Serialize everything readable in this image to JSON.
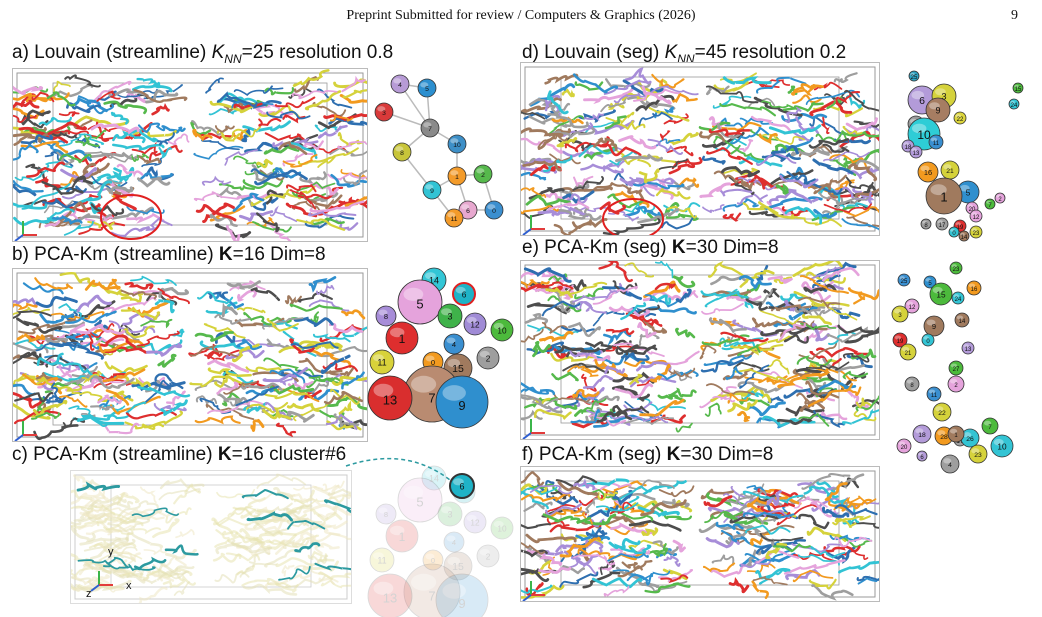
{
  "header": {
    "title": "Preprint Submitted for review / Computers & Graphics (2026)",
    "page_number": "9"
  },
  "panels": {
    "a": {
      "prefix": "a) Louvain (streamline) ",
      "knn_k": "K",
      "knn_sub": "NN",
      "rest": "=25 resolution 0.8"
    },
    "b": {
      "prefix": "b) PCA-Km (streamline) ",
      "bold": "K",
      "rest": "=16 Dim=8"
    },
    "c": {
      "prefix": "c) PCA-Km (streamline) ",
      "bold": "K",
      "rest": "=16 cluster#6"
    },
    "d": {
      "prefix": "d) Louvain (seg) ",
      "knn_k": "K",
      "knn_sub": "NN",
      "rest": "=45 resolution 0.2"
    },
    "e": {
      "prefix": "e) PCA-Km (seg) ",
      "bold": "K",
      "rest": "=30 Dim=8"
    },
    "f": {
      "prefix": "f) PCA-Km (seg) ",
      "bold": "K",
      "rest": "=30 Dim=8"
    }
  },
  "axes": {
    "x": "x",
    "y": "y",
    "z": "z"
  },
  "cluster_graph_a": {
    "nodes": [
      {
        "label": "4",
        "color": "#b79bd6"
      },
      {
        "label": "5",
        "color": "#2c8fcf"
      },
      {
        "label": "3",
        "color": "#d93a3a"
      },
      {
        "label": "7",
        "color": "#8a8a8a"
      },
      {
        "label": "10",
        "color": "#3d8fc7"
      },
      {
        "label": "8",
        "color": "#c8c53a"
      },
      {
        "label": "9",
        "color": "#32c3d4"
      },
      {
        "label": "1",
        "color": "#f39b2a"
      },
      {
        "label": "2",
        "color": "#56b94c"
      },
      {
        "label": "6",
        "color": "#e7a8cf"
      },
      {
        "label": "0",
        "color": "#3b8fcf"
      },
      {
        "label": "11",
        "color": "#f39b2a"
      }
    ]
  },
  "cluster_bubbles_b": [
    {
      "label": "14",
      "color": "#33c6d6"
    },
    {
      "label": "5",
      "color": "#e5a3dc"
    },
    {
      "label": "6",
      "color": "#1fb3c7"
    },
    {
      "label": "8",
      "color": "#a78dd8"
    },
    {
      "label": "3",
      "color": "#3fb24a"
    },
    {
      "label": "12",
      "color": "#a08bd6"
    },
    {
      "label": "10",
      "color": "#4cba3c"
    },
    {
      "label": "1",
      "color": "#de2e2e"
    },
    {
      "label": "4",
      "color": "#3a8fd0"
    },
    {
      "label": "11",
      "color": "#d8d23a"
    },
    {
      "label": "0",
      "color": "#f29a1f"
    },
    {
      "label": "15",
      "color": "#a07a5e"
    },
    {
      "label": "2",
      "color": "#9e9e9e"
    },
    {
      "label": "7",
      "color": "#b98b71"
    },
    {
      "label": "13",
      "color": "#d92e2e"
    },
    {
      "label": "9",
      "color": "#2f8fce"
    }
  ],
  "cluster_bubbles_c_highlight": {
    "label": "6",
    "color": "#1fb3c7"
  },
  "cluster_bubbles_d": [
    {
      "label": "25",
      "color": "#2ea3c2"
    },
    {
      "label": "15",
      "color": "#4cba3c"
    },
    {
      "label": "6",
      "color": "#b39bd9"
    },
    {
      "label": "3",
      "color": "#d5d23b"
    },
    {
      "label": "24",
      "color": "#33c4d4"
    },
    {
      "label": "9",
      "color": "#a67d62"
    },
    {
      "label": "22",
      "color": "#dcd53c"
    },
    {
      "label": "4",
      "color": "#9b9b9b"
    },
    {
      "label": "10",
      "color": "#2ecdd6"
    },
    {
      "label": "18",
      "color": "#b39bd9"
    },
    {
      "label": "13",
      "color": "#b39bd9"
    },
    {
      "label": "11",
      "color": "#3a8fd0"
    },
    {
      "label": "16",
      "color": "#f29a1f"
    },
    {
      "label": "21",
      "color": "#d5d23b"
    },
    {
      "label": "5",
      "color": "#2f8fce"
    },
    {
      "label": "1",
      "color": "#a07a5e"
    },
    {
      "label": "20",
      "color": "#e5a3dc"
    },
    {
      "label": "7",
      "color": "#4cba3c"
    },
    {
      "label": "2",
      "color": "#e5a3dc"
    },
    {
      "label": "8",
      "color": "#9e9e9e"
    },
    {
      "label": "17",
      "color": "#9e9e9e"
    },
    {
      "label": "19",
      "color": "#de2e2e"
    },
    {
      "label": "12",
      "color": "#e5a3dc"
    },
    {
      "label": "14",
      "color": "#a07a5e"
    },
    {
      "label": "0",
      "color": "#33c4d4"
    },
    {
      "label": "23",
      "color": "#d5d23b"
    }
  ],
  "cluster_bubbles_e": [
    {
      "label": "23",
      "color": "#4cba3c"
    },
    {
      "label": "25",
      "color": "#3a8fd0"
    },
    {
      "label": "5",
      "color": "#2f8fce"
    },
    {
      "label": "15",
      "color": "#4cba3c"
    },
    {
      "label": "16",
      "color": "#f29a1f"
    },
    {
      "label": "24",
      "color": "#33c4d4"
    },
    {
      "label": "12",
      "color": "#e5a3dc"
    },
    {
      "label": "3",
      "color": "#d5d23b"
    },
    {
      "label": "9",
      "color": "#a07a5e"
    },
    {
      "label": "14",
      "color": "#a07a5e"
    },
    {
      "label": "19",
      "color": "#de2e2e"
    },
    {
      "label": "0",
      "color": "#33c4d4"
    },
    {
      "label": "21",
      "color": "#d5d23b"
    },
    {
      "label": "13",
      "color": "#b39bd9"
    },
    {
      "label": "27",
      "color": "#4cba3c"
    },
    {
      "label": "8",
      "color": "#9e9e9e"
    },
    {
      "label": "2",
      "color": "#e5a3dc"
    },
    {
      "label": "11",
      "color": "#3a8fd0"
    },
    {
      "label": "22",
      "color": "#d5d23b"
    },
    {
      "label": "7",
      "color": "#4cba3c"
    },
    {
      "label": "18",
      "color": "#b39bd9"
    },
    {
      "label": "28",
      "color": "#f29a1f"
    },
    {
      "label": "17",
      "color": "#9e9e9e"
    },
    {
      "label": "26",
      "color": "#33c4d4"
    },
    {
      "label": "1",
      "color": "#a07a5e"
    },
    {
      "label": "10",
      "color": "#33c4d4"
    },
    {
      "label": "20",
      "color": "#e5a3dc"
    },
    {
      "label": "6",
      "color": "#b39bd9"
    },
    {
      "label": "4",
      "color": "#9e9e9e"
    },
    {
      "label": "23",
      "color": "#d5d23b"
    }
  ],
  "palette": [
    "#e5a3dc",
    "#56b94c",
    "#9e9e9e",
    "#2f8fce",
    "#de2e2e",
    "#a78dd8",
    "#f29a1f",
    "#32c3d4",
    "#d5d23b",
    "#a07a5e",
    "#2e6fb0",
    "#4d4d4d"
  ]
}
